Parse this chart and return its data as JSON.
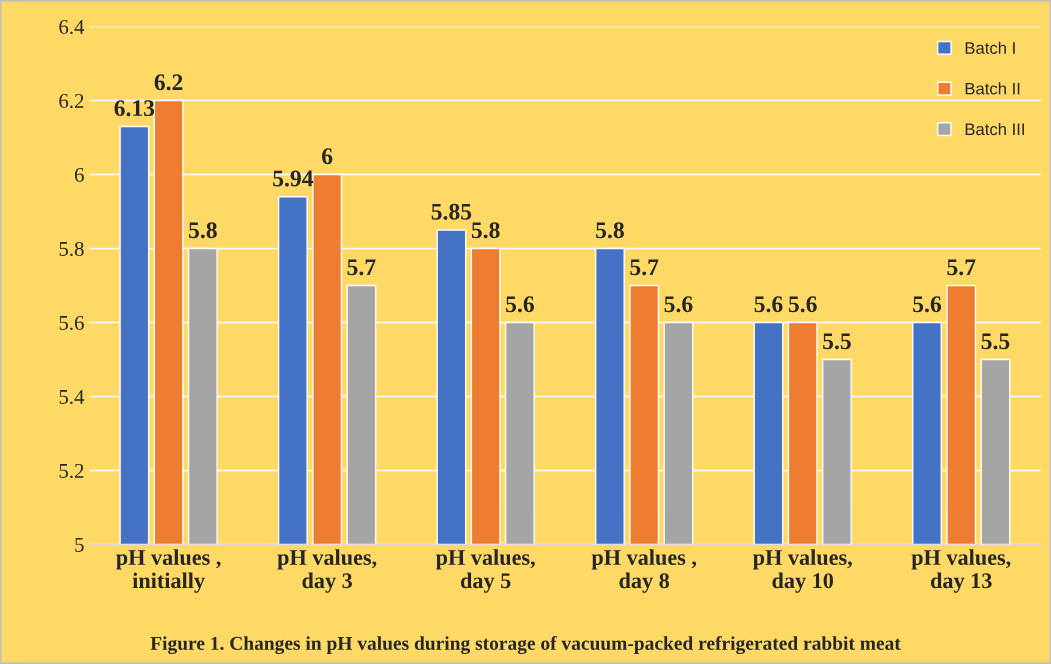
{
  "chart_data": {
    "type": "bar",
    "title": "Figure 1. Changes in pH values during storage of vacuum-packed refrigerated rabbit meat",
    "categories": [
      "pH values ,\ninitially",
      "pH values,\nday 3",
      "pH values,\nday 5",
      "pH values ,\nday 8",
      "pH values,\nday 10",
      "pH values,\nday 13"
    ],
    "series": [
      {
        "name": "Batch I",
        "color": "#4472c4",
        "values": [
          6.13,
          5.94,
          5.85,
          5.8,
          5.6,
          5.6
        ]
      },
      {
        "name": "Batch II",
        "color": "#ed7d31",
        "values": [
          6.2,
          6,
          5.8,
          5.7,
          5.6,
          5.7
        ]
      },
      {
        "name": "Batch III",
        "color": "#a5a5a5",
        "values": [
          5.8,
          5.7,
          5.6,
          5.6,
          5.5,
          5.5
        ]
      }
    ],
    "ylim": [
      5,
      6.4
    ],
    "yticks": [
      5,
      5.2,
      5.4,
      5.6,
      5.8,
      6,
      6.2,
      6.4
    ],
    "grid": "y",
    "legend": "top right",
    "data_labels": true
  }
}
